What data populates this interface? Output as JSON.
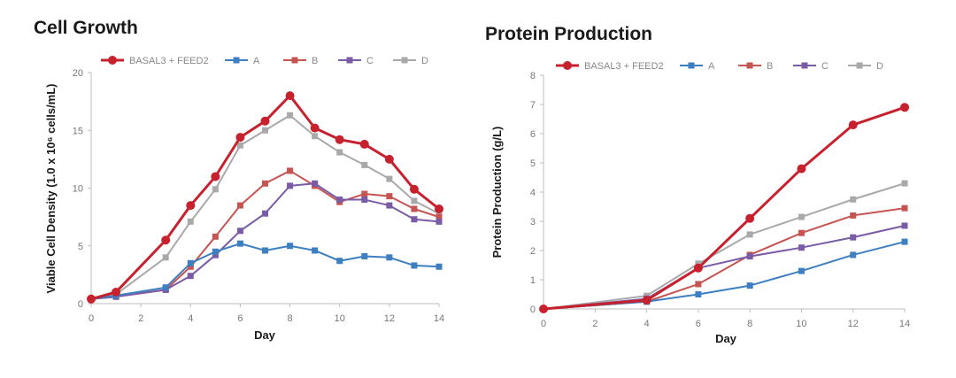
{
  "chart_data": [
    {
      "type": "line",
      "title": "Cell Growth",
      "xlabel": "Day",
      "ylabel": "Viable Cell Density (1.0 x 10⁶ cells/mL)",
      "xlim": [
        0,
        14
      ],
      "ylim": [
        0,
        20
      ],
      "xticks": [
        0,
        2,
        4,
        6,
        8,
        10,
        12,
        14
      ],
      "yticks": [
        0,
        5,
        10,
        15,
        20
      ],
      "grid": false,
      "legend_position": "top",
      "series": [
        {
          "name": "BASAL3 + FEED2",
          "color": "#c8212e",
          "marker": "circle",
          "x": [
            0,
            1,
            3,
            4,
            5,
            6,
            7,
            8,
            9,
            10,
            11,
            12,
            13,
            14
          ],
          "y": [
            0.4,
            1.0,
            5.5,
            8.5,
            11.0,
            14.4,
            15.8,
            18.0,
            15.2,
            14.2,
            13.8,
            12.5,
            9.9,
            8.2
          ]
        },
        {
          "name": "A",
          "color": "#3d7fc1",
          "marker": "square",
          "x": [
            0,
            1,
            3,
            4,
            5,
            6,
            7,
            8,
            9,
            10,
            11,
            12,
            13,
            14
          ],
          "y": [
            0.4,
            0.7,
            1.4,
            3.5,
            4.5,
            5.2,
            4.6,
            5.0,
            4.6,
            3.7,
            4.1,
            4.0,
            3.3,
            3.2
          ]
        },
        {
          "name": "B",
          "color": "#c65452",
          "marker": "square",
          "x": [
            0,
            1,
            3,
            4,
            5,
            6,
            7,
            8,
            9,
            10,
            11,
            12,
            13,
            14
          ],
          "y": [
            0.4,
            0.6,
            1.2,
            3.2,
            5.8,
            8.5,
            10.4,
            11.5,
            10.2,
            8.8,
            9.5,
            9.3,
            8.2,
            7.5
          ]
        },
        {
          "name": "C",
          "color": "#7a5ba6",
          "marker": "square",
          "x": [
            0,
            1,
            3,
            4,
            5,
            6,
            7,
            8,
            9,
            10,
            11,
            12,
            13,
            14
          ],
          "y": [
            0.4,
            0.6,
            1.2,
            2.4,
            4.2,
            6.3,
            7.8,
            10.2,
            10.4,
            9.0,
            9.0,
            8.5,
            7.3,
            7.1
          ]
        },
        {
          "name": "D",
          "color": "#a9a9a9",
          "marker": "square",
          "x": [
            0,
            1,
            3,
            4,
            5,
            6,
            7,
            8,
            9,
            10,
            11,
            12,
            13,
            14
          ],
          "y": [
            0.4,
            0.8,
            4.0,
            7.1,
            9.9,
            13.7,
            15.0,
            16.3,
            14.5,
            13.1,
            12.0,
            10.8,
            8.9,
            7.8
          ]
        }
      ]
    },
    {
      "type": "line",
      "title": "Protein Production",
      "xlabel": "Day",
      "ylabel": "Protein Production (g/L)",
      "xlim": [
        0,
        14
      ],
      "ylim": [
        0,
        8
      ],
      "xticks": [
        0,
        2,
        4,
        6,
        8,
        10,
        12,
        14
      ],
      "yticks": [
        0,
        1,
        2,
        3,
        4,
        5,
        6,
        7,
        8
      ],
      "grid": false,
      "legend_position": "top",
      "series": [
        {
          "name": "BASAL3 + FEED2",
          "color": "#c8212e",
          "marker": "circle",
          "x": [
            0,
            4,
            6,
            8,
            10,
            12,
            14
          ],
          "y": [
            0.0,
            0.3,
            1.4,
            3.1,
            4.8,
            6.3,
            6.9
          ]
        },
        {
          "name": "A",
          "color": "#3d7fc1",
          "marker": "square",
          "x": [
            0,
            4,
            6,
            8,
            10,
            12,
            14
          ],
          "y": [
            0.0,
            0.25,
            0.5,
            0.8,
            1.3,
            1.85,
            2.3
          ]
        },
        {
          "name": "B",
          "color": "#c65452",
          "marker": "square",
          "x": [
            0,
            4,
            6,
            8,
            10,
            12,
            14
          ],
          "y": [
            0.0,
            0.25,
            0.85,
            1.85,
            2.6,
            3.2,
            3.45
          ]
        },
        {
          "name": "C",
          "color": "#7a5ba6",
          "marker": "square",
          "x": [
            0,
            4,
            6,
            8,
            10,
            12,
            14
          ],
          "y": [
            0.0,
            0.35,
            1.4,
            1.8,
            2.1,
            2.45,
            2.85
          ]
        },
        {
          "name": "D",
          "color": "#a9a9a9",
          "marker": "square",
          "x": [
            0,
            4,
            6,
            8,
            10,
            12,
            14
          ],
          "y": [
            0.0,
            0.45,
            1.55,
            2.55,
            3.15,
            3.75,
            4.3
          ]
        }
      ]
    }
  ]
}
